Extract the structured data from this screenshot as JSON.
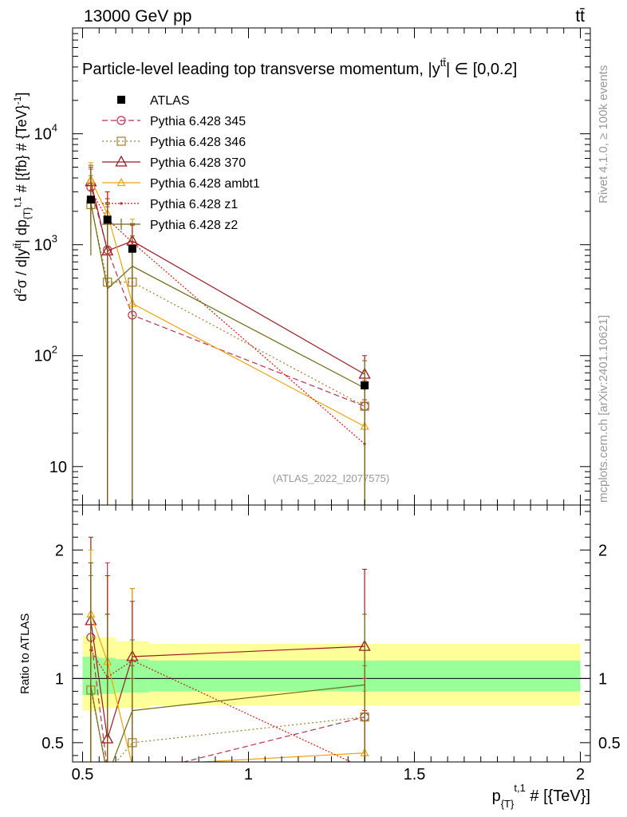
{
  "header": {
    "energy_label": "13000 GeV pp",
    "process_label": "tt̄",
    "side_label_rivet": "Rivet 4.1.0, ≥ 100k events",
    "side_label_mcplots": "mcplots.cern.ch [arXiv:2401.10621]",
    "watermark": "(ATLAS_2022_I2077575)"
  },
  "chart_data": [
    {
      "type": "line",
      "panel": "main",
      "title": "Particle-level leading top transverse momentum, |y^{tt̄}| ∈ [0,0.2]",
      "title_main": "Particle-level leading top transverse momentum, |y",
      "title_sup": "tt̄",
      "title_tail": "| ∈ [0,0.2]",
      "ylabel": "d²σ / d|y^{tt̄}| dp_{T}^{t,1} # [{fb} # {TeV}^{-1}]",
      "ylabel_parts": [
        "d",
        "2",
        "σ / d|y",
        "tt̄",
        "| dp",
        "{T",
        "}",
        "t,1",
        " # [{fb} # {TeV}",
        "-1",
        "]"
      ],
      "yscale": "log",
      "ylim": [
        4.5,
        90000
      ],
      "xlim": [
        0.47,
        2.03
      ],
      "y_ticks": [
        {
          "v": 10,
          "label": "10"
        },
        {
          "v": 100,
          "label": "10",
          "exp": "2"
        },
        {
          "v": 1000,
          "label": "10",
          "exp": "3"
        },
        {
          "v": 10000,
          "label": "10",
          "exp": "4"
        }
      ],
      "data": {
        "name": "ATLAS",
        "x": [
          0.525,
          0.575,
          0.65,
          1.35
        ],
        "y": [
          2550,
          1680,
          920,
          54
        ],
        "yerr": [
          150,
          110,
          60,
          5
        ]
      },
      "series": [
        {
          "name": "Pythia 6.428 345",
          "color": "#b5334f",
          "dash": "7,4",
          "marker": "circle",
          "x": [
            0.525,
            0.575,
            0.65,
            1.35
          ],
          "y": [
            3300,
            900,
            232,
            35
          ],
          "err_up": [
            4800,
            2200,
            1000,
            55
          ],
          "err_dn": [
            1800,
            20,
            4.5,
            4.5
          ]
        },
        {
          "name": "Pythia 6.428 346",
          "color": "#a27c2e",
          "dash": "2,3",
          "marker": "square",
          "x": [
            0.525,
            0.575,
            0.65,
            1.35
          ],
          "y": [
            2300,
            460,
            460,
            35
          ],
          "err_up": [
            4200,
            2300,
            900,
            60
          ],
          "err_dn": [
            1200,
            4.5,
            4.5,
            4.5
          ]
        },
        {
          "name": "Pythia 6.428 370",
          "color": "#9a1b22",
          "dash": "",
          "marker": "triangle",
          "x": [
            0.525,
            0.575,
            0.65,
            1.35
          ],
          "y": [
            3700,
            880,
            1080,
            68
          ],
          "err_up": [
            5200,
            2600,
            1550,
            100
          ],
          "err_dn": [
            2200,
            250,
            600,
            40
          ]
        },
        {
          "name": "Pythia 6.428 ambt1",
          "color": "#f0a30a",
          "dash": "",
          "marker": "triangle-small",
          "x": [
            0.525,
            0.575,
            0.65,
            1.35
          ],
          "y": [
            3850,
            1900,
            295,
            23
          ],
          "err_up": [
            5500,
            3000,
            1700,
            50
          ],
          "err_dn": [
            2000,
            4.5,
            4.5,
            4.5
          ]
        },
        {
          "name": "Pythia 6.428 z1",
          "color": "#d11d0f",
          "dash": "2,2",
          "marker": "dot",
          "x": [
            0.525,
            0.575,
            0.65,
            1.35
          ],
          "y": [
            3100,
            1700,
            1050,
            16
          ],
          "err_up": [
            5000,
            3000,
            1500,
            40
          ],
          "err_dn": [
            1500,
            4.5,
            4.5,
            4.5
          ]
        },
        {
          "name": "Pythia 6.428 z2",
          "color": "#6e6a12",
          "dash": "",
          "marker": "none",
          "x": [
            0.525,
            0.575,
            0.65,
            1.35
          ],
          "y": [
            2400,
            400,
            640,
            51
          ],
          "err_up": [
            5000,
            2400,
            1200,
            90
          ],
          "err_dn": [
            800,
            4.5,
            4.5,
            4.5
          ]
        }
      ]
    },
    {
      "type": "line",
      "panel": "ratio",
      "ylabel": "Ratio to ATLAS",
      "xlabel": "p_{T}^{t,1} # [{TeV}]",
      "xlabel_parts": [
        "p",
        "{T",
        "}",
        "t,1",
        " # [{TeV}]"
      ],
      "xlim": [
        0.47,
        2.03
      ],
      "ylim": [
        0.35,
        2.35
      ],
      "x_ticks": [
        {
          "v": 0.5,
          "label": "0.5"
        },
        {
          "v": 1,
          "label": "1"
        },
        {
          "v": 1.5,
          "label": "1.5"
        },
        {
          "v": 2,
          "label": "2"
        }
      ],
      "y_ticks": [
        {
          "v": 0.5,
          "label": "0.5"
        },
        {
          "v": 1,
          "label": "1"
        },
        {
          "v": 2,
          "label": "2"
        }
      ],
      "bands": [
        {
          "name": "outer",
          "color": "#ffff99",
          "x_edges": [
            0.5,
            0.55,
            0.6,
            0.7,
            2.0
          ],
          "lo": [
            0.75,
            0.77,
            0.77,
            0.79,
            0.79
          ],
          "hi": [
            1.33,
            1.32,
            1.29,
            1.27,
            1.27
          ]
        },
        {
          "name": "inner",
          "color": "#99ff99",
          "x_edges": [
            0.5,
            0.55,
            0.6,
            0.7,
            2.0
          ],
          "lo": [
            0.87,
            0.88,
            0.89,
            0.9,
            0.9
          ],
          "hi": [
            1.17,
            1.16,
            1.15,
            1.14,
            1.14
          ]
        }
      ],
      "series": [
        {
          "name": "Pythia 6.428 345",
          "color": "#b5334f",
          "dash": "7,4",
          "marker": "circle",
          "x": [
            0.525,
            0.575,
            0.65,
            1.35
          ],
          "y": [
            1.32,
            0.29,
            0.25,
            0.7
          ],
          "err_up": [
            1.9,
            1.9,
            1.1,
            1.0
          ],
          "err_dn": [
            0.35,
            0.35,
            0.35,
            0.35
          ]
        },
        {
          "name": "Pythia 6.428 346",
          "color": "#a27c2e",
          "dash": "2,3",
          "marker": "square",
          "x": [
            0.525,
            0.575,
            0.65,
            1.35
          ],
          "y": [
            0.91,
            0.27,
            0.5,
            0.7
          ],
          "err_up": [
            1.8,
            1.8,
            1.0,
            1.1
          ],
          "err_dn": [
            0.35,
            0.35,
            0.35,
            0.35
          ]
        },
        {
          "name": "Pythia 6.428 370",
          "color": "#9a1b22",
          "dash": "",
          "marker": "triangle",
          "x": [
            0.525,
            0.575,
            0.65,
            1.35
          ],
          "y": [
            1.45,
            0.53,
            1.17,
            1.25
          ],
          "err_up": [
            2.1,
            1.5,
            1.7,
            1.85
          ],
          "err_dn": [
            0.35,
            0.35,
            0.35,
            0.35
          ]
        },
        {
          "name": "Pythia 6.428 ambt1",
          "color": "#f0a30a",
          "dash": "",
          "marker": "triangle-small",
          "x": [
            0.525,
            0.575,
            0.65,
            1.35
          ],
          "y": [
            1.5,
            1.13,
            0.32,
            0.42
          ],
          "err_up": [
            2.0,
            1.8,
            1.7,
            0.9
          ],
          "err_dn": [
            0.35,
            0.35,
            0.35,
            0.35
          ]
        },
        {
          "name": "Pythia 6.428 z1",
          "color": "#d11d0f",
          "dash": "2,2",
          "marker": "dot",
          "x": [
            0.525,
            0.575,
            0.65,
            1.35
          ],
          "y": [
            1.22,
            1.01,
            1.14,
            0.3
          ],
          "err_up": [
            1.9,
            1.8,
            1.6,
            0.75
          ],
          "err_dn": [
            0.35,
            0.35,
            0.35,
            0.35
          ]
        },
        {
          "name": "Pythia 6.428 z2",
          "color": "#6e6a12",
          "dash": "",
          "marker": "none",
          "x": [
            0.525,
            0.575,
            0.65,
            1.35
          ],
          "y": [
            0.94,
            0.24,
            0.75,
            0.95
          ],
          "err_up": [
            1.9,
            1.5,
            1.3,
            1.5
          ],
          "err_dn": [
            0.35,
            0.35,
            0.35,
            0.35
          ]
        }
      ]
    }
  ]
}
